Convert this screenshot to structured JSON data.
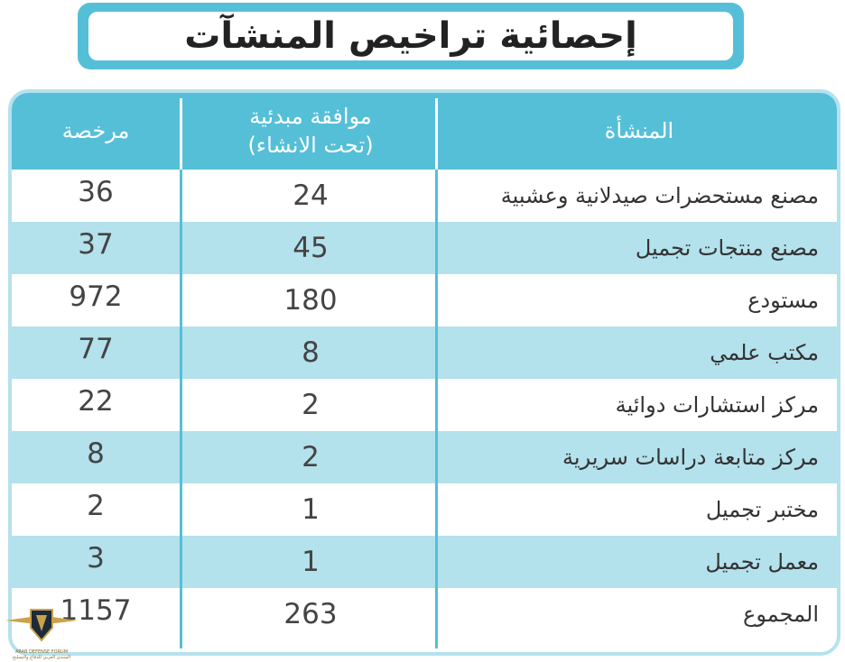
{
  "title": "إحصائية تراخيص المنشآت",
  "headers": {
    "facility": "المنشأة",
    "approval_line1": "موافقة مبدئية",
    "approval_line2": "(تحت الانشاء)",
    "license": "مرخصة"
  },
  "rows": [
    {
      "name": "مصنع مستحضرات صيدلانية وعشبية",
      "approval": "24",
      "license": "36"
    },
    {
      "name": "مصنع منتجات تجميل",
      "approval": "45",
      "license": "37"
    },
    {
      "name": "مستودع",
      "approval": "180",
      "license": "972"
    },
    {
      "name": "مكتب علمي",
      "approval": "8",
      "license": "77"
    },
    {
      "name": "مركز استشارات دوائية",
      "approval": "2",
      "license": "22"
    },
    {
      "name": "مركز متابعة دراسات سريرية",
      "approval": "2",
      "license": "8"
    },
    {
      "name": "مختبر تجميل",
      "approval": "1",
      "license": "2"
    },
    {
      "name": "معمل تجميل",
      "approval": "1",
      "license": "3"
    },
    {
      "name": "المجموع",
      "approval": "263",
      "license": "1157"
    }
  ],
  "watermark": {
    "line1": "ARAB DEFENSE FORUM",
    "line2": "المنتدى العربي للدفاع والتسليح"
  },
  "colors": {
    "header": "#55bfd8",
    "stripe": "#b3e1ec",
    "border": "#b6e1ee"
  }
}
